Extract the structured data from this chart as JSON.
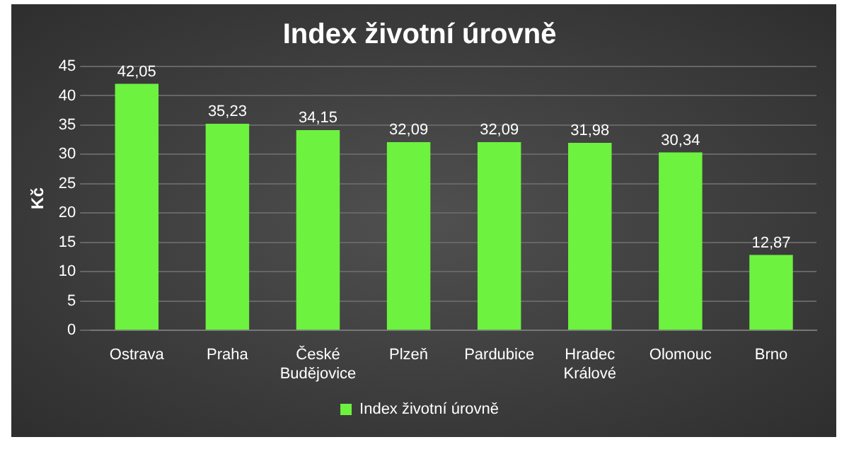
{
  "chart_data": {
    "type": "bar",
    "title": "Index životní úrovně",
    "ylabel": "Kč",
    "categories": [
      "Ostrava",
      "Praha",
      "České Budějovice",
      "Plzeň",
      "Pardubice",
      "Hradec Králové",
      "Olomouc",
      "Brno"
    ],
    "series": [
      {
        "name": "Index životní úrovně",
        "color": "#6cf23f",
        "values": [
          42.05,
          35.23,
          34.15,
          32.09,
          32.09,
          31.98,
          30.34,
          12.87
        ]
      }
    ],
    "value_labels": [
      "42,05",
      "35,23",
      "34,15",
      "32,09",
      "32,09",
      "31,98",
      "30,34",
      "12,87"
    ],
    "ylim": [
      0,
      45
    ],
    "yticks": [
      0,
      5,
      10,
      15,
      20,
      25,
      30,
      35,
      40,
      45
    ],
    "grid": "y",
    "legend": "bottom"
  }
}
